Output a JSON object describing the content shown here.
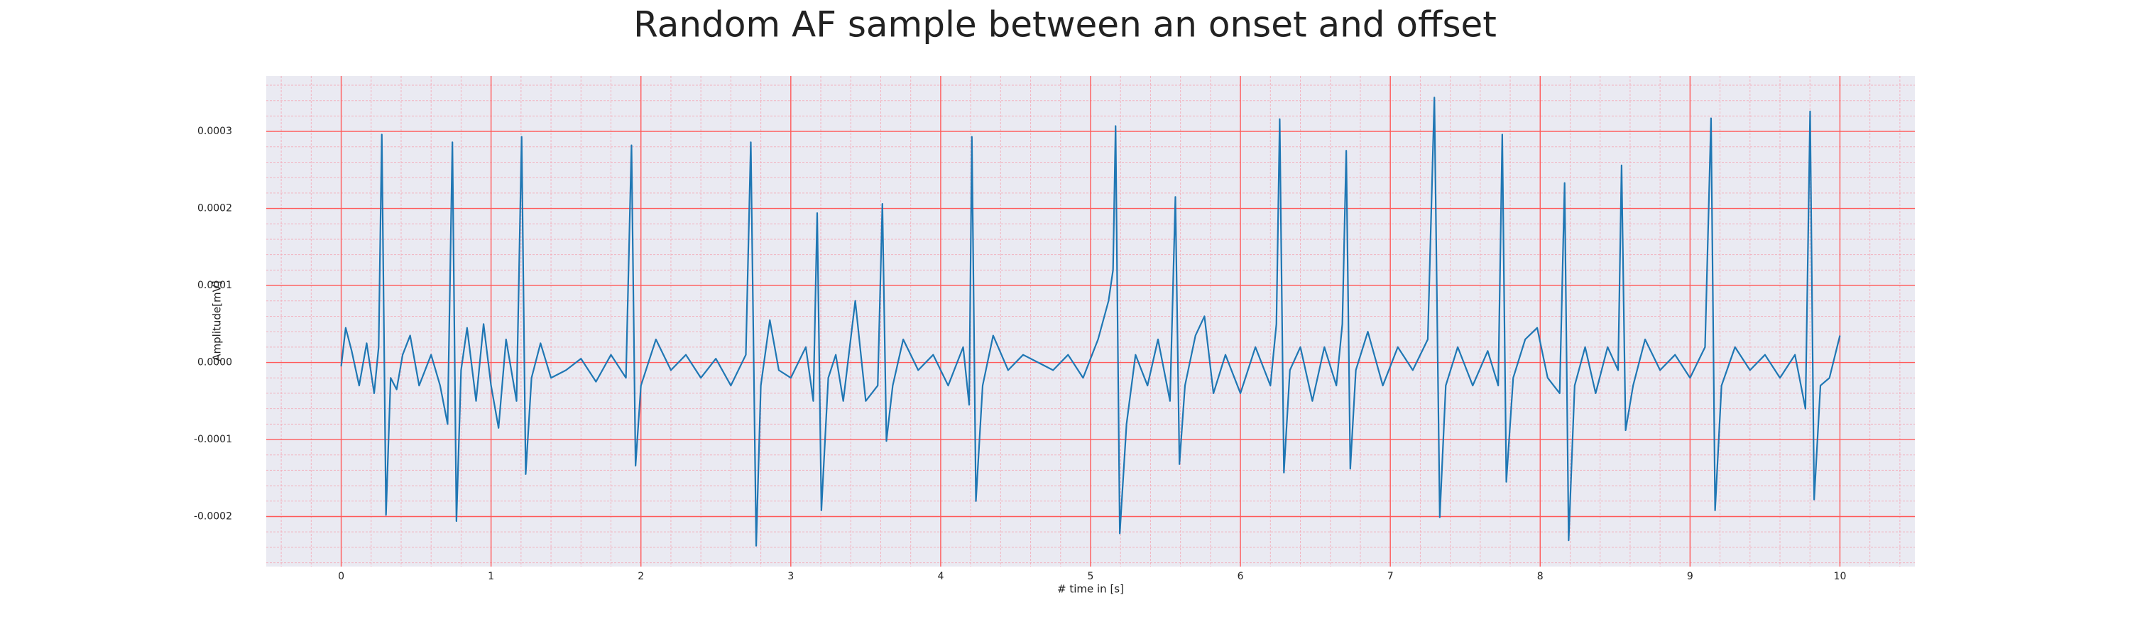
{
  "chart_data": {
    "type": "line",
    "title": "Random AF sample between an onset and offset",
    "xlabel": "# time in [s]",
    "ylabel": "Amplitude[mV]",
    "color": "#1f77b4",
    "grid": true,
    "minor_grid": true,
    "xlim": [
      -0.5,
      10.5
    ],
    "ylim": [
      -0.000265,
      0.000372
    ],
    "xticks": [
      0,
      1,
      2,
      3,
      4,
      5,
      6,
      7,
      8,
      9,
      10
    ],
    "yticks": [
      -0.0002,
      -0.0001,
      {
        "value": 0,
        "label": "0.0000"
      },
      0.0001,
      0.0002,
      0.0003
    ],
    "x": [
      0,
      0.03,
      0.07,
      0.12,
      0.17,
      0.22,
      0.25,
      0.271,
      0.299,
      0.33,
      0.37,
      0.41,
      0.46,
      0.52,
      0.6,
      0.66,
      0.71,
      0.742,
      0.769,
      0.8,
      0.84,
      0.9,
      0.95,
      1.0,
      1.05,
      1.1,
      1.17,
      1.204,
      1.231,
      1.27,
      1.33,
      1.4,
      1.5,
      1.6,
      1.7,
      1.8,
      1.9,
      1.937,
      1.964,
      2.0,
      2.1,
      2.2,
      2.3,
      2.4,
      2.5,
      2.6,
      2.7,
      2.733,
      2.769,
      2.8,
      2.86,
      2.92,
      3.0,
      3.1,
      3.15,
      3.176,
      3.204,
      3.25,
      3.3,
      3.35,
      3.43,
      3.5,
      3.58,
      3.611,
      3.638,
      3.68,
      3.75,
      3.85,
      3.95,
      4.05,
      4.15,
      4.19,
      4.208,
      4.235,
      4.28,
      4.35,
      4.45,
      4.55,
      4.65,
      4.75,
      4.85,
      4.95,
      5.05,
      5.12,
      5.15,
      5.167,
      5.195,
      5.24,
      5.3,
      5.38,
      5.45,
      5.53,
      5.566,
      5.593,
      5.63,
      5.7,
      5.76,
      5.82,
      5.9,
      6.0,
      6.1,
      6.2,
      6.24,
      6.262,
      6.29,
      6.33,
      6.4,
      6.48,
      6.56,
      6.64,
      6.68,
      6.706,
      6.733,
      6.77,
      6.85,
      6.95,
      7.05,
      7.15,
      7.25,
      7.294,
      7.33,
      7.37,
      7.45,
      7.55,
      7.65,
      7.72,
      7.747,
      7.774,
      7.82,
      7.9,
      7.98,
      8.05,
      8.13,
      8.163,
      8.19,
      8.23,
      8.3,
      8.37,
      8.45,
      8.52,
      8.543,
      8.57,
      8.62,
      8.7,
      8.8,
      8.9,
      9.0,
      9.1,
      9.14,
      9.167,
      9.21,
      9.3,
      9.4,
      9.5,
      9.6,
      9.7,
      9.77,
      9.801,
      9.828,
      9.87,
      9.93,
      10.0
    ],
    "values": [
      -5e-06,
      4.5e-05,
      1.5e-05,
      -3e-05,
      2.5e-05,
      -4e-05,
      2e-05,
      0.000296,
      -0.000198,
      -2e-05,
      -3.5e-05,
      1e-05,
      3.5e-05,
      -3e-05,
      1e-05,
      -3e-05,
      -8e-05,
      0.000286,
      -0.000206,
      -1e-05,
      4.5e-05,
      -5e-05,
      5e-05,
      -3e-05,
      -8.5e-05,
      3e-05,
      -5e-05,
      0.000293,
      -0.000145,
      -2e-05,
      2.5e-05,
      -2e-05,
      -1e-05,
      5e-06,
      -2.5e-05,
      1e-05,
      -2e-05,
      0.000282,
      -0.000134,
      -3e-05,
      3e-05,
      -1e-05,
      1e-05,
      -2e-05,
      5e-06,
      -3e-05,
      1e-05,
      0.000286,
      -0.000238,
      -3e-05,
      5.5e-05,
      -1e-05,
      -2e-05,
      2e-05,
      -5e-05,
      0.000194,
      -0.000192,
      -2e-05,
      1e-05,
      -5e-05,
      8e-05,
      -5e-05,
      -3e-05,
      0.000206,
      -0.000102,
      -3e-05,
      3e-05,
      -1e-05,
      1e-05,
      -3e-05,
      2e-05,
      -5.5e-05,
      0.000293,
      -0.00018,
      -3e-05,
      3.5e-05,
      -1e-05,
      1e-05,
      0,
      -1e-05,
      1e-05,
      -2e-05,
      3e-05,
      8e-05,
      0.00012,
      0.000307,
      -0.000222,
      -8e-05,
      1e-05,
      -3e-05,
      3e-05,
      -5e-05,
      0.000215,
      -0.000132,
      -3e-05,
      3.5e-05,
      6e-05,
      -4e-05,
      1e-05,
      -4e-05,
      2e-05,
      -3e-05,
      5e-05,
      0.000316,
      -0.000143,
      -1e-05,
      2e-05,
      -5e-05,
      2e-05,
      -3e-05,
      5e-05,
      0.000275,
      -0.000138,
      -1e-05,
      4e-05,
      -3e-05,
      2e-05,
      -1e-05,
      3e-05,
      0.000344,
      -0.000201,
      -3e-05,
      2e-05,
      -3e-05,
      1.5e-05,
      -3e-05,
      0.000296,
      -0.000155,
      -2e-05,
      3e-05,
      4.5e-05,
      -2e-05,
      -4e-05,
      0.000233,
      -0.000231,
      -3e-05,
      2e-05,
      -4e-05,
      2e-05,
      -1e-05,
      0.000256,
      -8.8e-05,
      -3e-05,
      3e-05,
      -1e-05,
      1e-05,
      -2e-05,
      2e-05,
      0.000317,
      -0.000192,
      -3e-05,
      2e-05,
      -1e-05,
      1e-05,
      -2e-05,
      1e-05,
      -6e-05,
      0.000326,
      -0.000178,
      -3e-05,
      -2e-05,
      3.5e-05
    ]
  }
}
